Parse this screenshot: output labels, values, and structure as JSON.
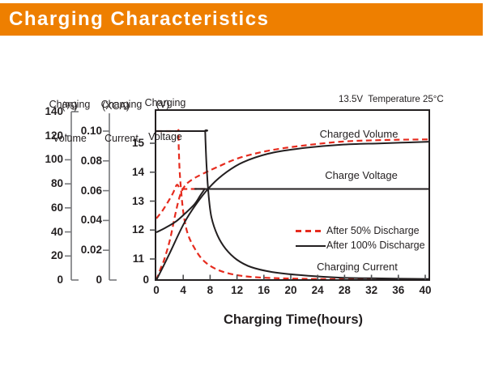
{
  "header": {
    "title": "Charging Characteristics"
  },
  "note": "13.5V  Temperature 25°C",
  "colors": {
    "accent_orange": "#ee7f00",
    "curve_red": "#e62b1e",
    "curve_black": "#231f20",
    "axis_gray": "#77787b"
  },
  "annotations": {
    "charged_volume": "Charged Volume",
    "charge_voltage": "Charge Voltage",
    "charging_current": "Charging Current"
  },
  "legend": [
    {
      "label": "After 50% Discharge",
      "style": "dashed-red"
    },
    {
      "label": "After 100% Discharge",
      "style": "solid-black"
    }
  ],
  "chart_data": {
    "type": "line",
    "title": "Charging Characteristics",
    "xlabel": "Charging Time(hours)",
    "x_axis": {
      "range": [
        0,
        40
      ],
      "ticks": [
        0,
        4,
        8,
        12,
        16,
        20,
        24,
        28,
        32,
        36,
        40
      ]
    },
    "y_axes": [
      {
        "id": "volume",
        "title_line1": "Charging",
        "title_line2": "Volume",
        "unit": "(%)",
        "range": [
          0,
          140
        ],
        "ticks": [
          {
            "label": "140",
            "v": 140
          },
          {
            "label": "120",
            "v": 120
          },
          {
            "label": "100",
            "v": 100
          },
          {
            "label": "80",
            "v": 80
          },
          {
            "label": "60",
            "v": 60
          },
          {
            "label": "40",
            "v": 40
          },
          {
            "label": "20",
            "v": 20
          },
          {
            "label": "0",
            "v": 0
          }
        ]
      },
      {
        "id": "current",
        "title_line1": "Charging",
        "title_line2": "Current",
        "unit": "(XCA)",
        "range": [
          0,
          0.1
        ],
        "ticks": [
          {
            "label": "0.10",
            "v": 0.1
          },
          {
            "label": "0.08",
            "v": 0.08
          },
          {
            "label": "0.06",
            "v": 0.06
          },
          {
            "label": "0.04",
            "v": 0.04
          },
          {
            "label": "0.02",
            "v": 0.02
          },
          {
            "label": "0",
            "v": 0
          }
        ]
      },
      {
        "id": "voltage",
        "title_line1": "Charging",
        "title_line2": "Voltage",
        "unit": "(V)",
        "range": [
          11,
          15.5
        ],
        "ticks": [
          {
            "label": "15",
            "v": 15
          },
          {
            "label": "14",
            "v": 14
          },
          {
            "label": "13",
            "v": 13
          },
          {
            "label": "12",
            "v": 12
          },
          {
            "label": "11",
            "v": 11
          },
          {
            "label": "0",
            "v": 0
          }
        ]
      }
    ],
    "regulation_voltage_note": "13.5V  Temperature 25°C",
    "series": [
      {
        "name": "charged-volume-after-50-discharge",
        "axis": "volume",
        "style": "dashed-red",
        "points": [
          [
            0,
            0
          ],
          [
            0.6,
            9
          ],
          [
            1.2,
            17.5
          ],
          [
            2.05,
            34
          ],
          [
            2.8,
            54
          ],
          [
            3.3,
            66
          ],
          [
            3.7,
            73
          ],
          [
            4.2,
            78
          ],
          [
            4.7,
            81
          ],
          [
            5.6,
            84.5
          ],
          [
            6.6,
            87.5
          ],
          [
            9.1,
            94
          ],
          [
            12.3,
            101.5
          ],
          [
            16.6,
            107.5
          ],
          [
            21.4,
            111.5
          ],
          [
            27.4,
            115
          ],
          [
            33.5,
            116.4
          ],
          [
            40.6,
            117
          ]
        ]
      },
      {
        "name": "charge-voltage-after-50-discharge",
        "axis": "voltage",
        "style": "dashed-red",
        "points": [
          [
            0,
            12.4
          ],
          [
            0.85,
            12.65
          ],
          [
            1.7,
            12.96
          ],
          [
            2.4,
            13.24
          ],
          [
            2.75,
            13.42
          ],
          [
            3.0,
            13.55
          ],
          [
            3.2,
            13.55
          ],
          [
            3.5,
            13.43
          ],
          [
            3.9,
            13.42
          ],
          [
            5,
            13.42
          ],
          [
            7.3,
            13.42
          ]
        ]
      },
      {
        "name": "charging-current-after-50-discharge",
        "axis": "current",
        "style": "dashed-red",
        "points": [
          [
            0,
            0.1
          ],
          [
            3.0,
            0.1
          ],
          [
            3.26,
            0.1
          ],
          [
            3.33,
            0.09
          ],
          [
            3.45,
            0.075
          ],
          [
            3.65,
            0.062
          ],
          [
            4.0,
            0.046
          ],
          [
            4.6,
            0.032
          ],
          [
            5.6,
            0.022
          ],
          [
            6.9,
            0.0136
          ],
          [
            8.6,
            0.008
          ],
          [
            10.8,
            0.0044
          ],
          [
            13.9,
            0.0022
          ],
          [
            19,
            0.0011
          ],
          [
            27.4,
            0.0005
          ],
          [
            40.6,
            0.0003
          ]
        ]
      },
      {
        "name": "charged-volume-after-100-discharge",
        "axis": "volume",
        "style": "solid-black",
        "points": [
          [
            0,
            0
          ],
          [
            1,
            11
          ],
          [
            2.05,
            23
          ],
          [
            4.2,
            48
          ],
          [
            6.3,
            66
          ],
          [
            8.3,
            79.5
          ],
          [
            10.5,
            90
          ],
          [
            12.9,
            98
          ],
          [
            16.6,
            105
          ],
          [
            20.8,
            109
          ],
          [
            27.4,
            112.5
          ],
          [
            33.5,
            113.7
          ],
          [
            40.6,
            115
          ]
        ]
      },
      {
        "name": "charge-voltage-after-100-discharge",
        "axis": "voltage",
        "style": "solid-black",
        "points": [
          [
            0,
            11.92
          ],
          [
            1.45,
            12.09
          ],
          [
            3.0,
            12.31
          ],
          [
            4.5,
            12.62
          ],
          [
            5.7,
            12.9
          ],
          [
            6.5,
            13.18
          ],
          [
            7.0,
            13.35
          ],
          [
            7.3,
            13.42
          ],
          [
            8.5,
            13.42
          ],
          [
            40.6,
            13.42
          ]
        ]
      },
      {
        "name": "charging-current-after-100-discharge",
        "axis": "current",
        "style": "solid-black",
        "points": [
          [
            0,
            0.1
          ],
          [
            7.0,
            0.1
          ],
          [
            7.25,
            0.1
          ],
          [
            7.32,
            0.092
          ],
          [
            7.5,
            0.074
          ],
          [
            7.8,
            0.056
          ],
          [
            8.2,
            0.042
          ],
          [
            9.1,
            0.03
          ],
          [
            10.3,
            0.021
          ],
          [
            12,
            0.0136
          ],
          [
            14.1,
            0.0087
          ],
          [
            17.2,
            0.0054
          ],
          [
            21.4,
            0.0033
          ],
          [
            27.4,
            0.0016
          ],
          [
            33.5,
            0.0011
          ],
          [
            40.6,
            0.0007
          ]
        ]
      }
    ]
  }
}
